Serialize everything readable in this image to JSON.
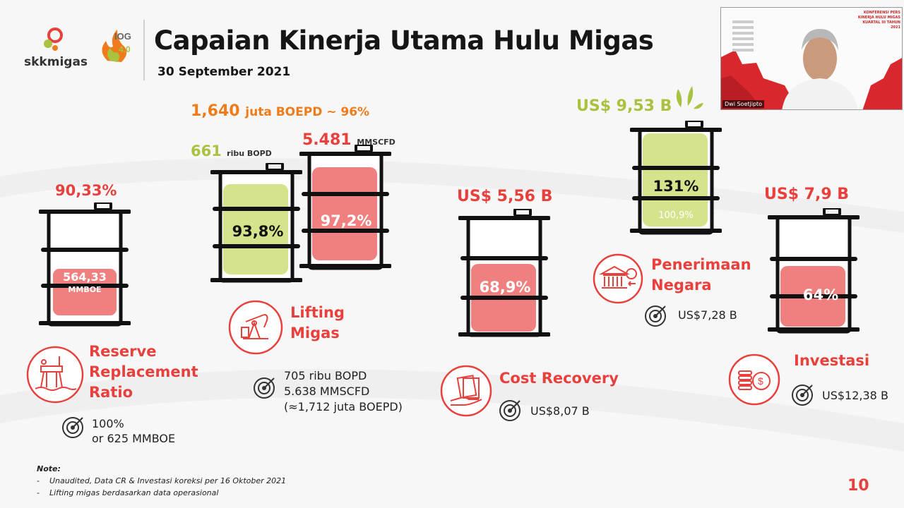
{
  "header": {
    "logo_text": "skkmigas",
    "title": "Capaian Kinerja Utama Hulu Migas",
    "date": "30 September 2021"
  },
  "rrr": {
    "value": "90,33%",
    "barrel_line1": "564,33",
    "barrel_line2": "MMBOE",
    "label_l1": "Reserve",
    "label_l2": "Replacement",
    "label_l3": "Ratio",
    "target_l1": "100%",
    "target_l2": "or 625 MMBOE"
  },
  "lifting": {
    "total_value": "1,640",
    "total_unit": "juta BOEPD ~ 96%",
    "oil_value": "661",
    "oil_unit": "ribu BOPD",
    "oil_pct": "93,8%",
    "gas_value": "5.481",
    "gas_unit": "MMSCFD",
    "gas_pct": "97,2%",
    "label_l1": "Lifting",
    "label_l2": "Migas",
    "target_l1": "705 ribu BOPD",
    "target_l2": "5.638 MMSCFD",
    "target_l3": "(≈1,712 juta BOEPD)"
  },
  "cost_recovery": {
    "value": "US$ 5,56 B",
    "pct": "68,9%",
    "label": "Cost Recovery",
    "target": "US$8,07 B"
  },
  "penerimaan": {
    "value": "US$ 9,53 B",
    "pct": "131%",
    "sub_pct": "100,9%",
    "label_l1": "Penerimaan",
    "label_l2": "Negara",
    "target": "US$7,28 B"
  },
  "investasi": {
    "value": "US$ 7,9 B",
    "pct": "64%",
    "label": "Investasi",
    "target": "US$12,38 B"
  },
  "notes": {
    "heading": "Note:",
    "item1": "Unaudited, Data CR & Investasi koreksi per 16 Oktober 2021",
    "item2": "Lifting migas berdasarkan data operasional"
  },
  "page_number": "10",
  "webcam": {
    "presenter_name": "Dwi Soetjipto",
    "slide_title_l1": "KONFERENSI PERS",
    "slide_title_l2": "KINERJA HULU MIGAS",
    "slide_title_l3": "KUARTAL III TAHUN 2021"
  },
  "colors": {
    "red": "#e8403c",
    "green_fill": "#d5e48c",
    "red_fill": "#f08080",
    "orange": "#ef7b1a",
    "green_text": "#a9c23f"
  }
}
